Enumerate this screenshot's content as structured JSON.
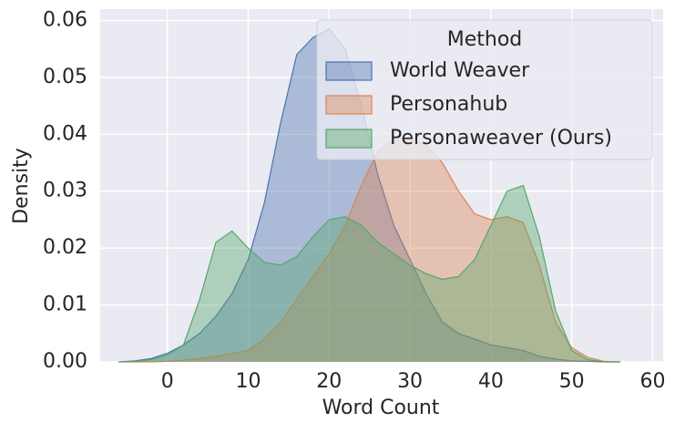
{
  "chart_data": {
    "type": "kde",
    "x_label": "Word Count",
    "y_label": "Density",
    "legend_title": "Method",
    "legend_position": "upper right",
    "grid": true,
    "xlim": [
      -8.3,
      61.3
    ],
    "ylim": [
      0,
      0.062
    ],
    "xticks": [
      0,
      10,
      20,
      30,
      40,
      50,
      60
    ],
    "yticks": [
      {
        "value": 0,
        "label": "0.00"
      },
      0.01,
      0.02,
      0.03,
      0.04,
      0.05,
      0.06
    ],
    "x": [
      -6,
      -4,
      -2,
      0,
      2,
      4,
      6,
      8,
      10,
      12,
      14,
      16,
      18,
      20,
      22,
      24,
      26,
      28,
      30,
      32,
      34,
      36,
      38,
      40,
      42,
      44,
      46,
      48,
      50,
      52,
      54,
      56
    ],
    "series": [
      {
        "name": "World Weaver",
        "color": "#4c72b0",
        "values": [
          0,
          0.0002,
          0.0006,
          0.0015,
          0.003,
          0.005,
          0.008,
          0.012,
          0.018,
          0.028,
          0.042,
          0.054,
          0.057,
          0.0585,
          0.055,
          0.045,
          0.033,
          0.024,
          0.018,
          0.012,
          0.007,
          0.005,
          0.004,
          0.003,
          0.0025,
          0.002,
          0.001,
          0.0005,
          0.0002,
          0.0001,
          0,
          0
        ]
      },
      {
        "name": "Personahub",
        "color": "#dd8452",
        "values": [
          0,
          0,
          0,
          0.0001,
          0.0003,
          0.0006,
          0.001,
          0.0015,
          0.002,
          0.004,
          0.007,
          0.011,
          0.015,
          0.019,
          0.024,
          0.031,
          0.037,
          0.039,
          0.0395,
          0.038,
          0.035,
          0.03,
          0.026,
          0.025,
          0.0255,
          0.0245,
          0.017,
          0.007,
          0.0025,
          0.0008,
          0.0001,
          0
        ]
      },
      {
        "name": "Personaweaver (Ours)",
        "color": "#55a868",
        "values": [
          0,
          0.0001,
          0.0004,
          0.0012,
          0.003,
          0.011,
          0.021,
          0.023,
          0.02,
          0.0175,
          0.017,
          0.0185,
          0.022,
          0.025,
          0.0255,
          0.024,
          0.021,
          0.019,
          0.017,
          0.0155,
          0.0145,
          0.015,
          0.018,
          0.024,
          0.03,
          0.031,
          0.022,
          0.009,
          0.002,
          0.0004,
          0,
          0
        ]
      }
    ]
  }
}
